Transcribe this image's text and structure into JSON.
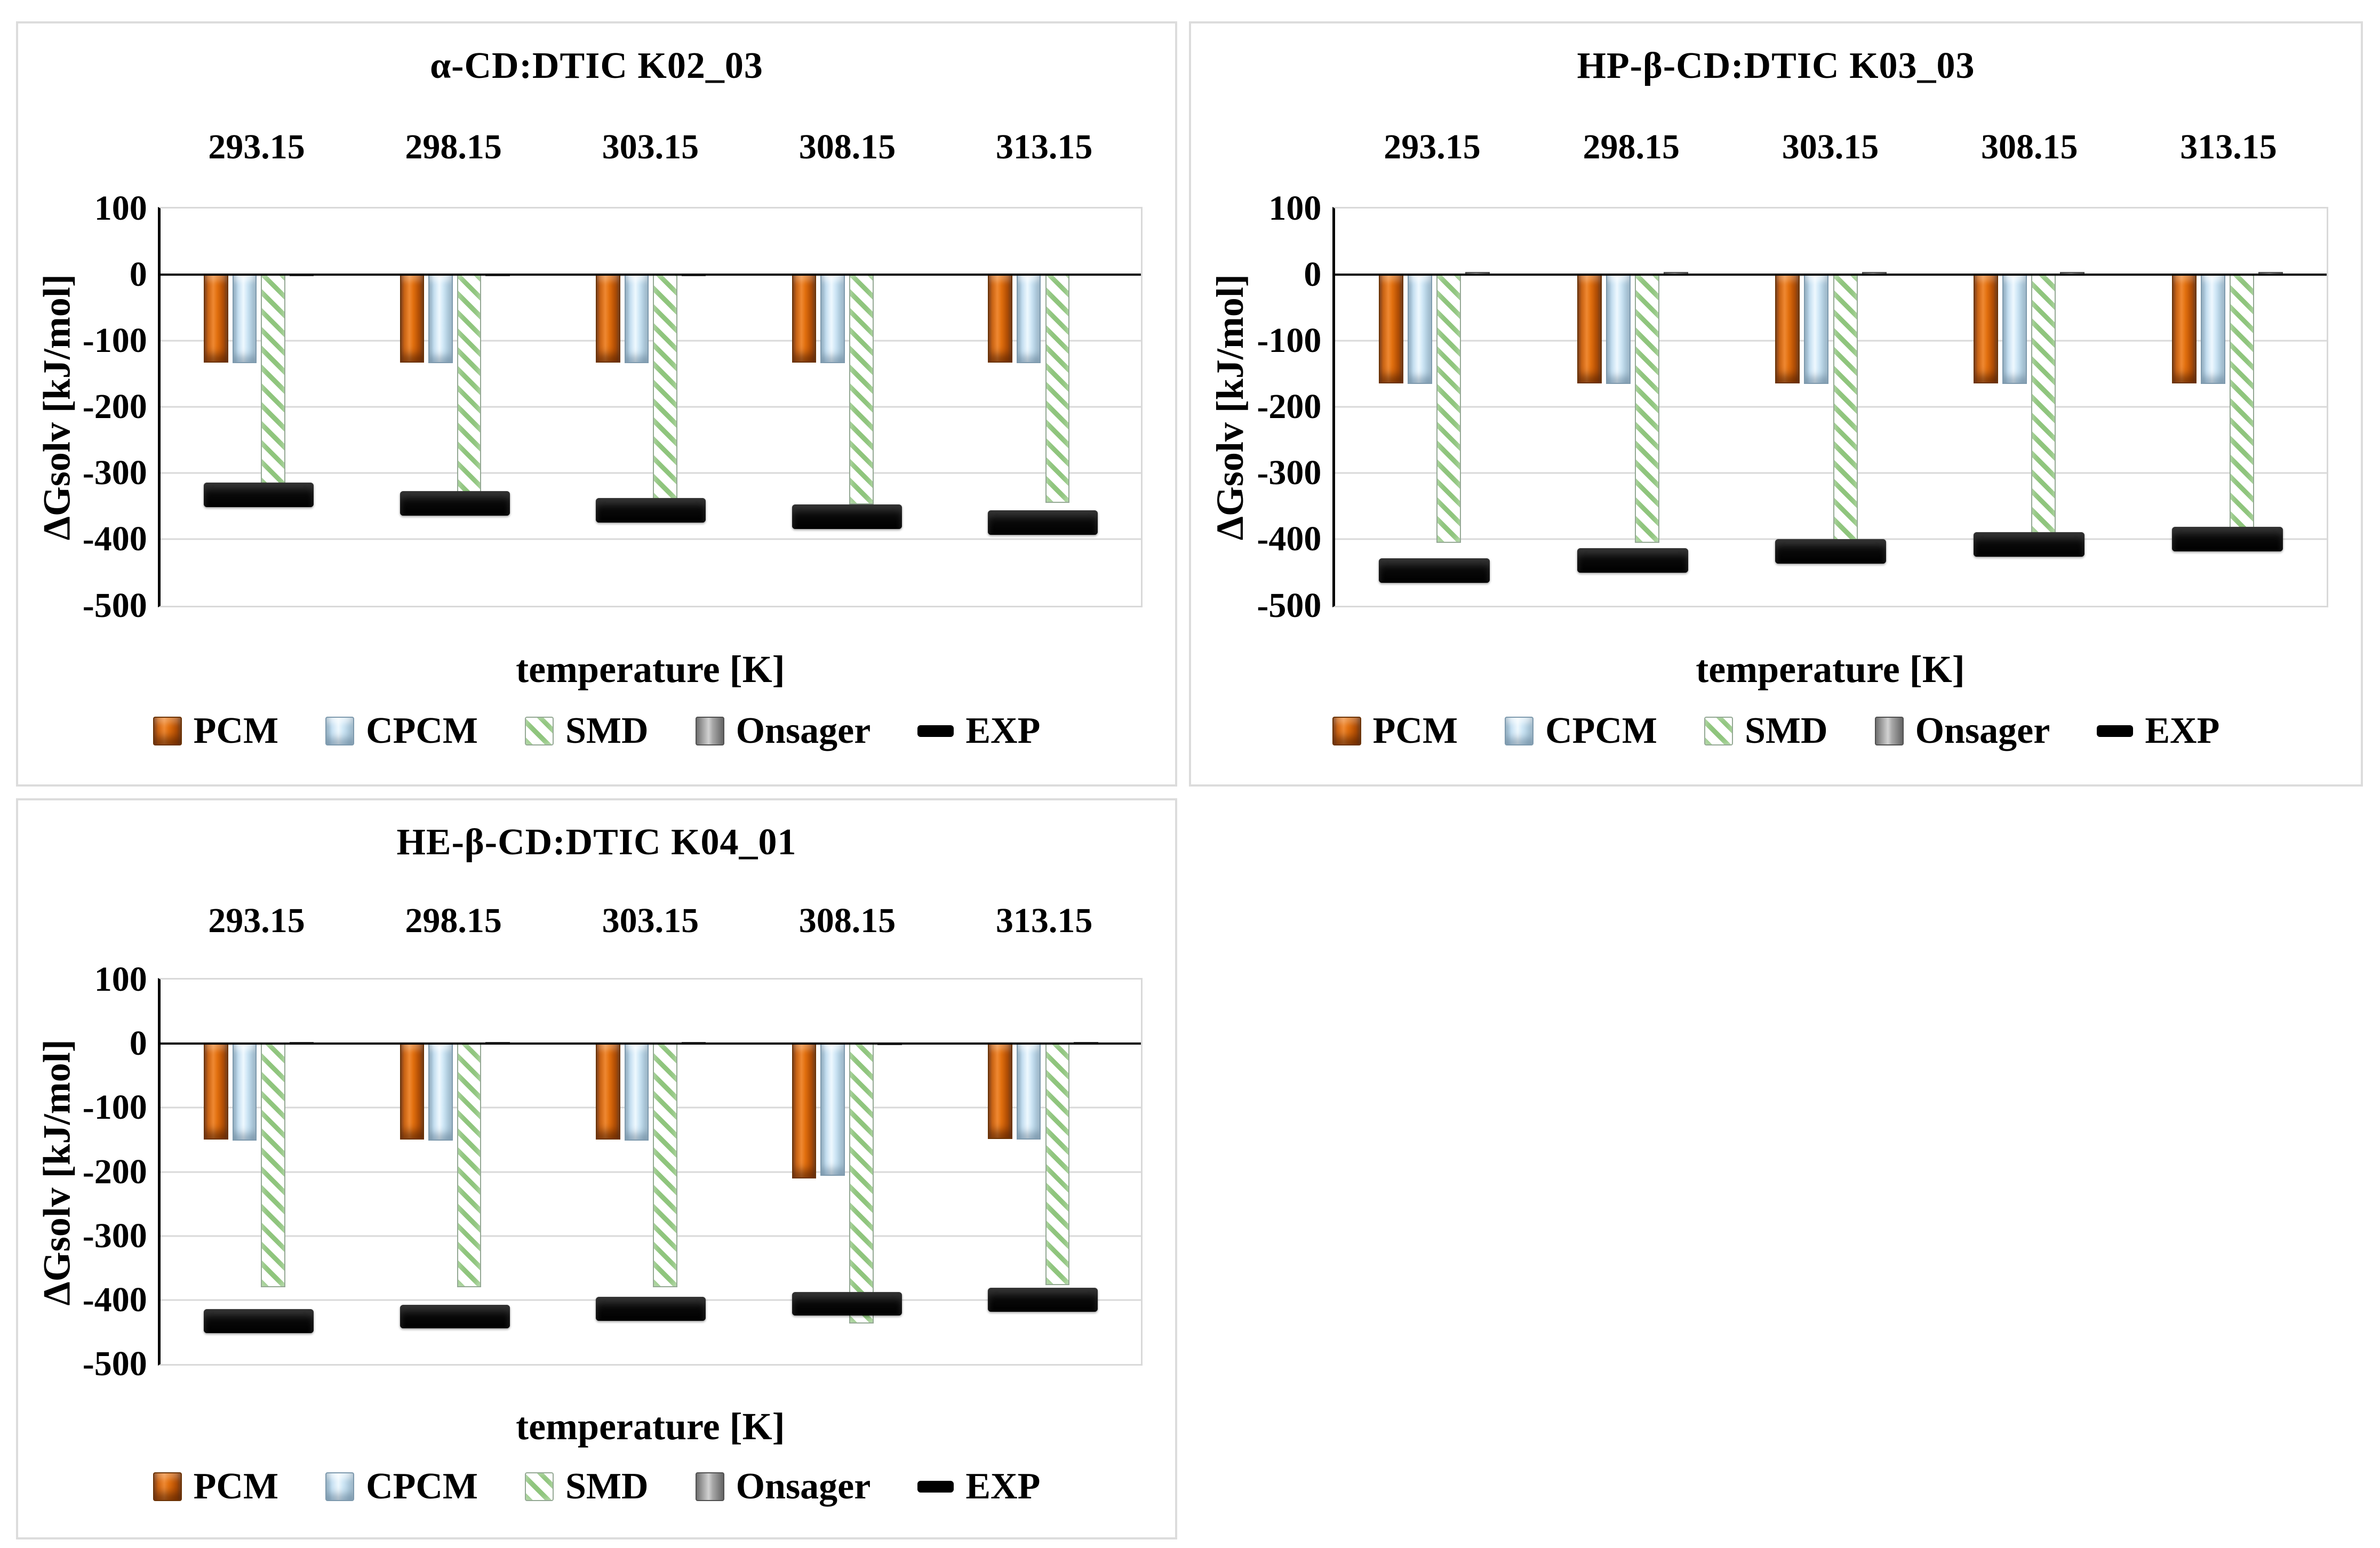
{
  "page": {
    "background": "#ffffff"
  },
  "colors": {
    "pcm": "#e2700f",
    "cpcm": "#cfe7f6",
    "smd_stripe": "#8fc57d",
    "onsager": "#a8a8a8",
    "exp": "#000000",
    "gridline": "#d9d9d9",
    "panel_border": "#dcdcdc",
    "axis_line": "#000000"
  },
  "axis": {
    "y_ticks": [
      "100",
      "0",
      "-100",
      "-200",
      "-300",
      "-400",
      "-500"
    ],
    "y_max": 100,
    "y_min": -500
  },
  "legend": {
    "items": [
      {
        "key": "pcm",
        "label": "PCM"
      },
      {
        "key": "cpcm",
        "label": "CPCM"
      },
      {
        "key": "smd",
        "label": "SMD"
      },
      {
        "key": "onsager",
        "label": "Onsager"
      },
      {
        "key": "exp",
        "label": "EXP"
      }
    ]
  },
  "chart_data": [
    {
      "type": "bar",
      "title": "α-CD:DTIC K02_03",
      "xlabel": "temperature [K]",
      "ylabel": "ΔGsolv [kJ/mol]",
      "ylim": [
        -500,
        100
      ],
      "grid": "horizontal",
      "legend_position": "bottom",
      "categories": [
        "293.15",
        "298.15",
        "303.15",
        "308.15",
        "313.15"
      ],
      "series": [
        {
          "name": "PCM",
          "key": "pcm",
          "values": [
            -133,
            -133,
            -133,
            -133,
            -133
          ]
        },
        {
          "name": "CPCM",
          "key": "cpcm",
          "values": [
            -134,
            -134,
            -134,
            -134,
            -134
          ]
        },
        {
          "name": "SMD",
          "key": "smd",
          "values": [
            -347,
            -350,
            -342,
            -347,
            -345
          ]
        },
        {
          "name": "Onsager",
          "key": "onsager",
          "values": [
            0.5,
            0.5,
            0.5,
            2,
            2
          ]
        }
      ],
      "exp_series": {
        "name": "EXP",
        "key": "exp",
        "values": [
          -333,
          -346,
          -356,
          -366,
          -375
        ]
      }
    },
    {
      "type": "bar",
      "title": "HP-β-CD:DTIC K03_03",
      "xlabel": "temperature [K]",
      "ylabel": "ΔGsolv [kJ/mol]",
      "ylim": [
        -500,
        100
      ],
      "grid": "horizontal",
      "legend_position": "bottom",
      "categories": [
        "293.15",
        "298.15",
        "303.15",
        "308.15",
        "313.15"
      ],
      "series": [
        {
          "name": "PCM",
          "key": "pcm",
          "values": [
            -164,
            -164,
            -164,
            -164,
            -164
          ]
        },
        {
          "name": "CPCM",
          "key": "cpcm",
          "values": [
            -165,
            -165,
            -165,
            -165,
            -165
          ]
        },
        {
          "name": "SMD",
          "key": "smd",
          "values": [
            -405,
            -405,
            -406,
            -392,
            -398
          ]
        },
        {
          "name": "Onsager",
          "key": "onsager",
          "values": [
            4,
            4,
            4,
            4,
            4
          ]
        }
      ],
      "exp_series": {
        "name": "EXP",
        "key": "exp",
        "values": [
          -447,
          -432,
          -418,
          -408,
          -400
        ]
      }
    },
    {
      "type": "bar",
      "title": "HE-β-CD:DTIC K04_01",
      "xlabel": "temperature [K]",
      "ylabel": "ΔGsolv [kJ/mol]",
      "ylim": [
        -500,
        100
      ],
      "grid": "horizontal",
      "legend_position": "bottom",
      "categories": [
        "293.15",
        "298.15",
        "303.15",
        "308.15",
        "313.15"
      ],
      "series": [
        {
          "name": "PCM",
          "key": "pcm",
          "values": [
            -150,
            -150,
            -150,
            -210,
            -149
          ]
        },
        {
          "name": "CPCM",
          "key": "cpcm",
          "values": [
            -151,
            -151,
            -151,
            -206,
            -150
          ]
        },
        {
          "name": "SMD",
          "key": "smd",
          "values": [
            -380,
            -380,
            -380,
            -437,
            -377
          ]
        },
        {
          "name": "Onsager",
          "key": "onsager",
          "values": [
            3,
            3,
            3,
            1,
            3
          ]
        }
      ],
      "exp_series": {
        "name": "EXP",
        "key": "exp",
        "values": [
          -433,
          -426,
          -414,
          -406,
          -400
        ]
      }
    }
  ]
}
